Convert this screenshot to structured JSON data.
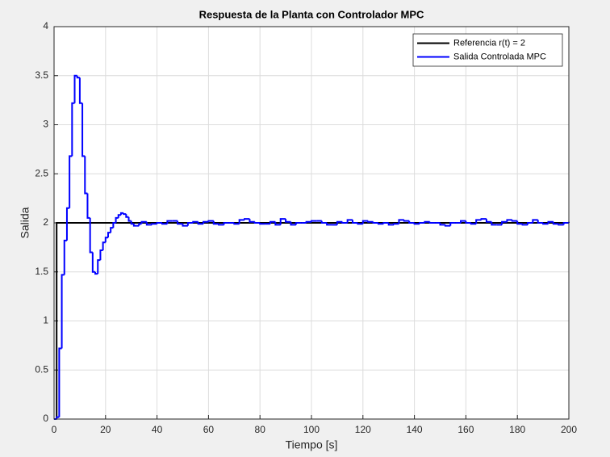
{
  "chart_data": {
    "type": "line",
    "step": "post",
    "title": "Respuesta de la Planta con Controlador MPC",
    "xlabel": "Tiempo [s]",
    "ylabel": "Salida",
    "xlim": [
      0,
      200
    ],
    "ylim": [
      0,
      4
    ],
    "xticks": [
      0,
      20,
      40,
      60,
      80,
      100,
      120,
      140,
      160,
      180,
      200
    ],
    "yticks": [
      0,
      0.5,
      1,
      1.5,
      2,
      2.5,
      3,
      3.5,
      4
    ],
    "grid": true,
    "legend": "upper-right",
    "series": [
      {
        "name": "Referencia r(t) = 2",
        "color": "#000000",
        "x": [
          0,
          1,
          200
        ],
        "values": [
          0,
          2,
          2
        ]
      },
      {
        "name": "Salida Controlada MPC",
        "color": "#0000ff",
        "x": [
          0,
          1,
          2,
          3,
          4,
          5,
          6,
          7,
          8,
          9,
          10,
          11,
          12,
          13,
          14,
          15,
          16,
          17,
          18,
          19,
          20,
          21,
          22,
          23,
          24,
          25,
          26,
          27,
          28,
          29,
          30,
          31,
          32,
          33,
          34,
          36,
          38,
          40,
          42,
          44,
          46,
          48,
          50,
          52,
          54,
          56,
          58,
          60,
          62,
          64,
          66,
          68,
          70,
          72,
          74,
          76,
          78,
          80,
          82,
          84,
          86,
          88,
          90,
          92,
          94,
          96,
          98,
          100,
          102,
          104,
          106,
          108,
          110,
          112,
          114,
          116,
          118,
          120,
          122,
          124,
          126,
          128,
          130,
          132,
          134,
          136,
          138,
          140,
          142,
          144,
          146,
          148,
          150,
          152,
          154,
          156,
          158,
          160,
          162,
          164,
          166,
          168,
          170,
          172,
          174,
          176,
          178,
          180,
          182,
          184,
          186,
          188,
          190,
          192,
          194,
          196,
          198,
          200
        ],
        "values": [
          0,
          0.02,
          0.72,
          1.47,
          1.82,
          2.15,
          2.68,
          3.22,
          3.5,
          3.48,
          3.22,
          2.68,
          2.3,
          2.05,
          1.7,
          1.5,
          1.48,
          1.62,
          1.72,
          1.8,
          1.85,
          1.9,
          1.95,
          2.0,
          2.05,
          2.08,
          2.1,
          2.09,
          2.06,
          2.02,
          1.99,
          1.97,
          1.97,
          1.99,
          2.01,
          1.98,
          1.99,
          2.0,
          1.99,
          2.02,
          2.02,
          1.99,
          1.97,
          2.0,
          2.01,
          1.99,
          2.01,
          2.02,
          1.99,
          1.98,
          2.0,
          2.0,
          1.99,
          2.03,
          2.04,
          2.01,
          2.0,
          1.99,
          1.99,
          2.01,
          1.98,
          2.04,
          2.01,
          1.98,
          2.0,
          2.0,
          2.01,
          2.02,
          2.02,
          2.0,
          1.98,
          1.98,
          2.01,
          2.0,
          2.03,
          2.0,
          1.99,
          2.02,
          2.01,
          2.0,
          1.99,
          2.0,
          1.98,
          1.99,
          2.03,
          2.02,
          2.0,
          1.99,
          2.0,
          2.01,
          2.0,
          2.0,
          1.98,
          1.97,
          2.0,
          2.0,
          2.02,
          2.0,
          1.99,
          2.03,
          2.04,
          2.01,
          1.98,
          1.98,
          2.01,
          2.03,
          2.02,
          1.99,
          1.98,
          2.0,
          2.03,
          2.0,
          1.99,
          2.01,
          1.99,
          1.98,
          2.0,
          2.01
        ]
      }
    ]
  }
}
